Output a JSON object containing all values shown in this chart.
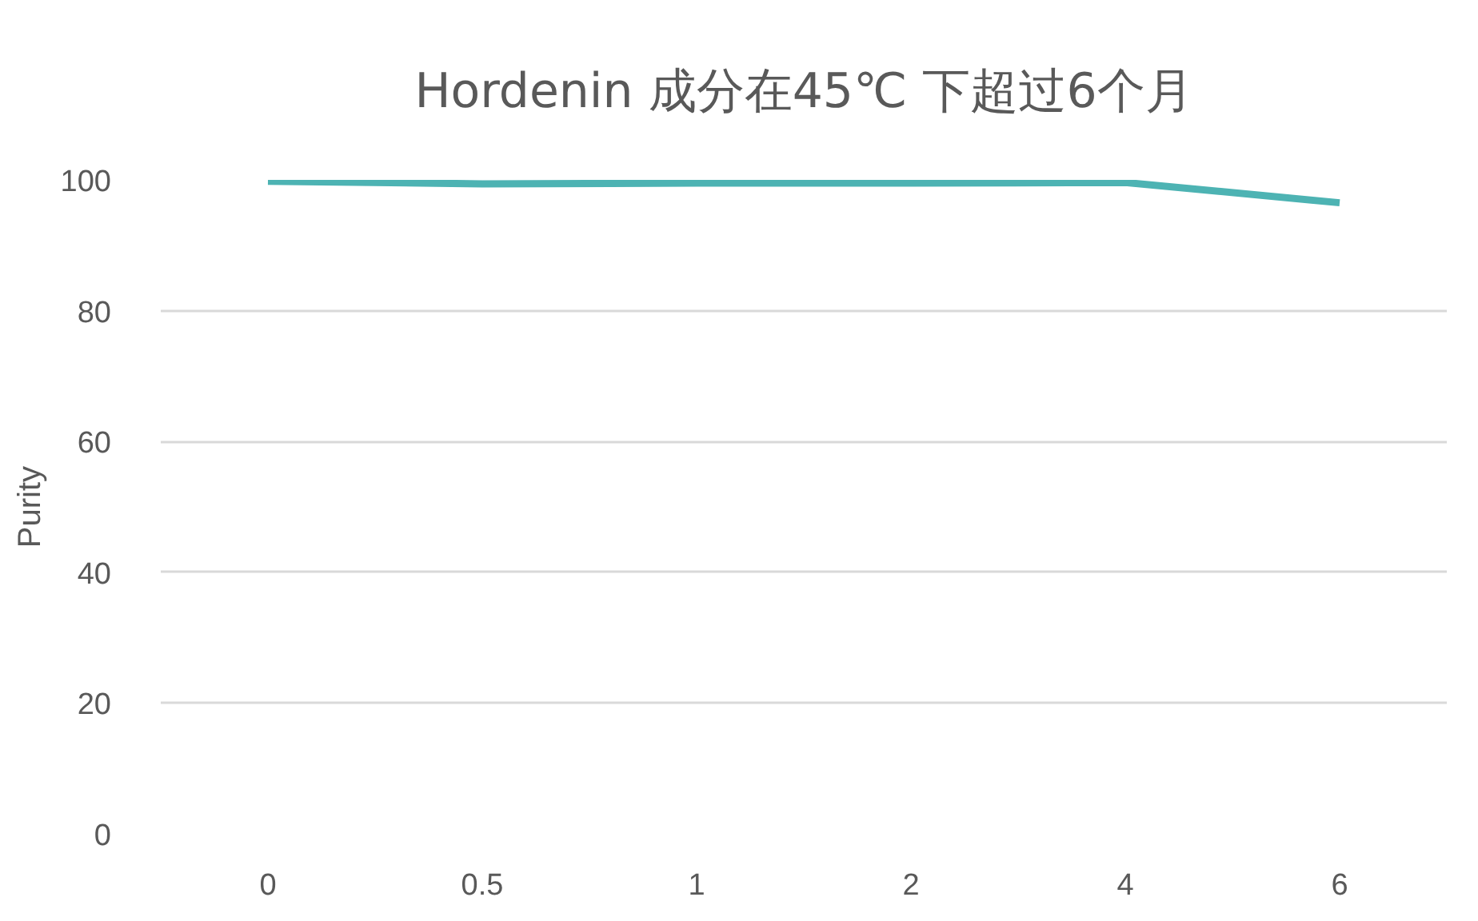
{
  "chart_data": {
    "type": "line",
    "title": "Hordenin 成分在45℃ 下超过6个月",
    "ylabel": "Purity",
    "categories": [
      "0",
      "0.5",
      "1",
      "2",
      "4",
      "6"
    ],
    "series": [
      {
        "color": "#4db3b3",
        "values": [
          99.8,
          99.4,
          99.5,
          99.5,
          99.6,
          96.5
        ]
      }
    ],
    "ylim": [
      0,
      100
    ],
    "yticks": [
      0,
      20,
      40,
      60,
      80,
      100
    ],
    "grid": "y",
    "marker": "none",
    "line_style": "solid"
  }
}
